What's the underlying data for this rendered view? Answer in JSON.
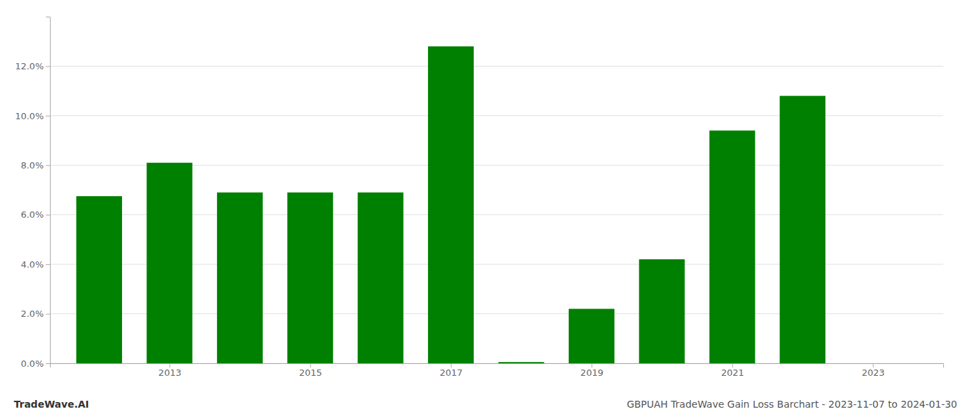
{
  "chart_data": {
    "type": "bar",
    "x": [
      2012,
      2013,
      2014,
      2015,
      2016,
      2017,
      2018,
      2019,
      2020,
      2021,
      2022,
      2023
    ],
    "values": [
      0.0675,
      0.081,
      0.069,
      0.069,
      0.069,
      0.128,
      0.0005,
      0.022,
      0.042,
      0.094,
      0.108,
      0.0
    ],
    "color": "#008000",
    "xlim": [
      2011.3,
      2024.0
    ],
    "xticks": [
      2013,
      2015,
      2017,
      2019,
      2021,
      2023
    ],
    "ylim": [
      0,
      0.14
    ],
    "yticks": [
      {
        "value": 0.0,
        "label": "0.0%"
      },
      {
        "value": 0.02,
        "label": "2.0%"
      },
      {
        "value": 0.04,
        "label": "4.0%"
      },
      {
        "value": 0.06,
        "label": "6.0%"
      },
      {
        "value": 0.08,
        "label": "8.0%"
      },
      {
        "value": 0.1,
        "label": "10.0%"
      },
      {
        "value": 0.12,
        "label": "12.0%"
      }
    ],
    "grid": true,
    "annotations": [
      "TradeWave.AI",
      "GBPUAH TradeWave Gain Loss Barchart - 2023-11-07 to 2024-01-30"
    ]
  }
}
